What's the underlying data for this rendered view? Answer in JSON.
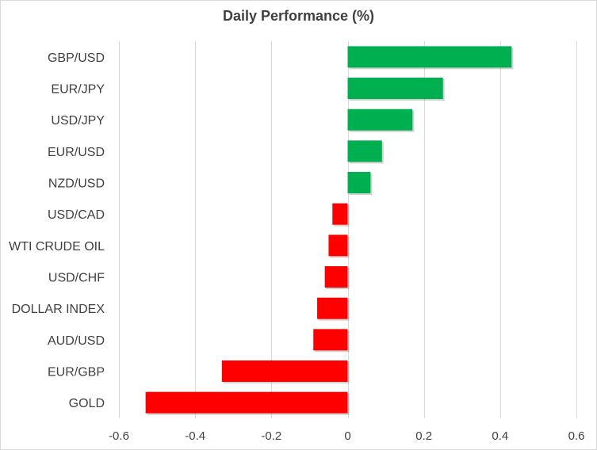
{
  "chart_data": {
    "type": "bar",
    "orientation": "horizontal",
    "title": "Daily Performance (%)",
    "xlabel": "",
    "ylabel": "",
    "xlim": [
      -0.6,
      0.6
    ],
    "x_ticks": [
      "-0.6",
      "-0.4",
      "-0.2",
      "0",
      "0.2",
      "0.4",
      "0.6"
    ],
    "grid": true,
    "legend": "none",
    "categories": [
      "GBP/USD",
      "EUR/JPY",
      "USD/JPY",
      "EUR/USD",
      "NZD/USD",
      "USD/CAD",
      "WTI CRUDE OIL",
      "USD/CHF",
      "DOLLAR INDEX",
      "AUD/USD",
      "EUR/GBP",
      "GOLD"
    ],
    "values": [
      0.43,
      0.25,
      0.17,
      0.09,
      0.06,
      -0.04,
      -0.05,
      -0.06,
      -0.08,
      -0.09,
      -0.33,
      -0.53
    ],
    "colors": {
      "positive": "#00b050",
      "negative": "#ff0000",
      "grid": "#d9d9d9",
      "text": "#404040"
    }
  }
}
